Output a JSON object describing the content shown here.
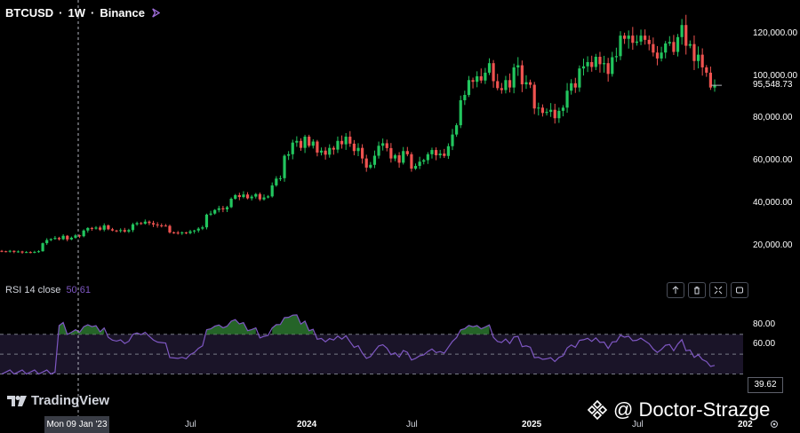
{
  "header": {
    "symbol": "BTCUSD",
    "interval": "1W",
    "exchange": "Binance",
    "separator": "·"
  },
  "rsi": {
    "title": "RSI 14 close",
    "value_label": "50.61",
    "last_value": "39.62",
    "upper_band": 70,
    "lower_band": 30,
    "mid": 50,
    "ticks": [
      "80.00",
      "60.00"
    ]
  },
  "price_axis": {
    "ticks": [
      "120,000.00",
      "100,000.00",
      "80,000.00",
      "60,000.00",
      "40,000.00",
      "20,000.00"
    ],
    "tick_values": [
      120000,
      100000,
      80000,
      60000,
      40000,
      20000
    ],
    "last_price_label": "95,548.73",
    "last_price": 95548.73
  },
  "time_axis": {
    "labels": [
      {
        "text": "Jul",
        "bold": false
      },
      {
        "text": "2024",
        "bold": true
      },
      {
        "text": "Jul",
        "bold": false
      },
      {
        "text": "2025",
        "bold": true
      },
      {
        "text": "Jul",
        "bold": false
      },
      {
        "text": "202",
        "bold": true
      }
    ],
    "crosshair_label": "Mon 09 Jan '23"
  },
  "branding": {
    "logo_text": "TradingView",
    "watermark": "@ Doctor-Strazge"
  },
  "colors": {
    "up": "#26a69a",
    "up_bright": "#22c55e",
    "down": "#ef5350",
    "rsi_line": "#7e57c2",
    "rsi_band_fill": "#1a1428",
    "overbought_fill": "#2e7d32"
  },
  "chart_data": {
    "type": "candlestick",
    "title": "BTCUSD · 1W · Binance",
    "y_range": [
      0,
      130000
    ],
    "weekly_closes": [
      17200,
      17000,
      17400,
      16900,
      17100,
      16600,
      16800,
      16500,
      16900,
      17200,
      21000,
      22500,
      23000,
      23500,
      22900,
      24500,
      22800,
      23600,
      24700,
      24300,
      27000,
      28200,
      27900,
      28400,
      27400,
      29400,
      27600,
      27000,
      26800,
      27200,
      26500,
      27200,
      29900,
      30500,
      30200,
      31200,
      30500,
      29800,
      29400,
      29300,
      29200,
      26100,
      26000,
      25900,
      26100,
      25800,
      26600,
      27000,
      27900,
      28500,
      34500,
      35000,
      36700,
      37500,
      37000,
      38000,
      42000,
      43700,
      42800,
      44000,
      42200,
      43000,
      44200,
      41700,
      42600,
      43100,
      48300,
      51500,
      51700,
      62300,
      63000,
      68500,
      69300,
      66000,
      71300,
      67000,
      69000,
      63800,
      64700,
      62800,
      66000,
      65200,
      69300,
      67700,
      71300,
      68000,
      64500,
      66000,
      61000,
      56700,
      58000,
      62300,
      67000,
      68200,
      65900,
      61000,
      62500,
      59000,
      64500,
      63000,
      56200,
      57500,
      59500,
      60200,
      63000,
      65000,
      62500,
      63300,
      62200,
      66800,
      72300,
      76700,
      88500,
      91000,
      98000,
      97200,
      99800,
      97800,
      101500,
      106000,
      97500,
      94200,
      93300,
      98000,
      94500,
      104000,
      105000,
      96000,
      97000,
      95800,
      84600,
      85000,
      82500,
      83000,
      84000,
      80000,
      83500,
      85000,
      93000,
      96500,
      94500,
      103500,
      104500,
      106500,
      104200,
      109000,
      105500,
      106000,
      100900,
      108800,
      109300,
      119000,
      117500,
      119000,
      115600,
      116200,
      119000,
      117000,
      115000,
      111000,
      108200,
      111000,
      115300,
      116000,
      111300,
      118300,
      124000,
      114200,
      115000,
      107000,
      110000,
      104000,
      101500,
      94500,
      95548
    ]
  }
}
